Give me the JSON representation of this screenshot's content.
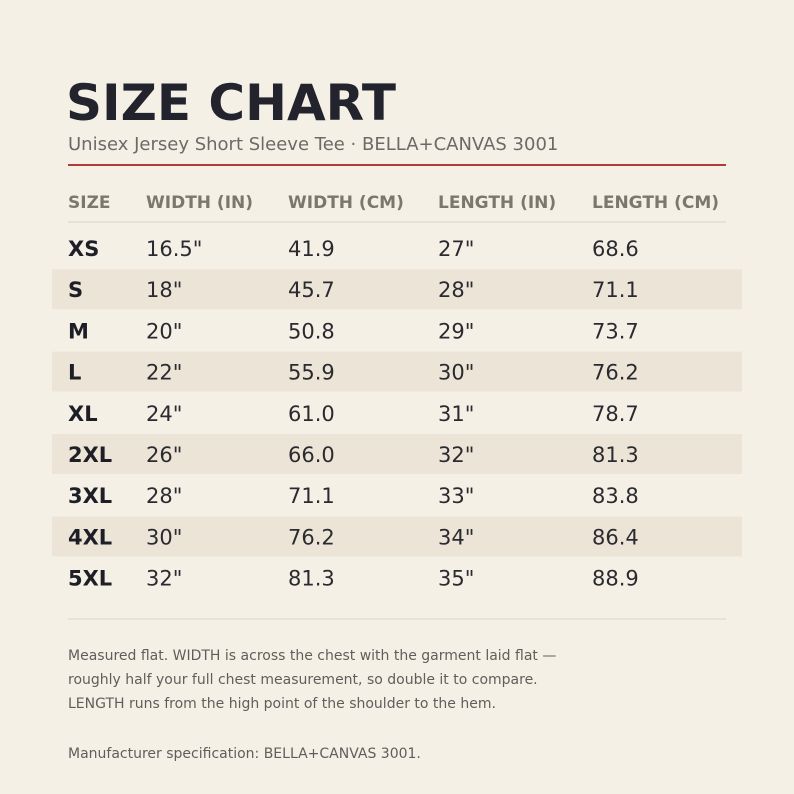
{
  "header": {
    "title": "SIZE CHART",
    "subtitle": "Unisex Jersey Short Sleeve Tee  ·  BELLA+CANVAS 3001"
  },
  "table": {
    "columns": [
      "SIZE",
      "WIDTH (IN)",
      "WIDTH (CM)",
      "LENGTH (IN)",
      "LENGTH (CM)"
    ],
    "rows": [
      [
        "XS",
        "16.5\"",
        "41.9",
        "27\"",
        "68.6"
      ],
      [
        "S",
        "18\"",
        "45.7",
        "28\"",
        "71.1"
      ],
      [
        "M",
        "20\"",
        "50.8",
        "29\"",
        "73.7"
      ],
      [
        "L",
        "22\"",
        "55.9",
        "30\"",
        "76.2"
      ],
      [
        "XL",
        "24\"",
        "61.0",
        "31\"",
        "78.7"
      ],
      [
        "2XL",
        "26\"",
        "66.0",
        "32\"",
        "81.3"
      ],
      [
        "3XL",
        "28\"",
        "71.1",
        "33\"",
        "83.8"
      ],
      [
        "4XL",
        "30\"",
        "76.2",
        "34\"",
        "86.4"
      ],
      [
        "5XL",
        "32\"",
        "81.3",
        "35\"",
        "88.9"
      ]
    ]
  },
  "notes": [
    "Measured flat. WIDTH is across the chest with the garment laid flat —",
    "roughly half your full chest measurement, so double it to compare.",
    "LENGTH runs from the high point of the shoulder to the hem."
  ],
  "footer": "Manufacturer specification: BELLA+CANVAS 3001."
}
